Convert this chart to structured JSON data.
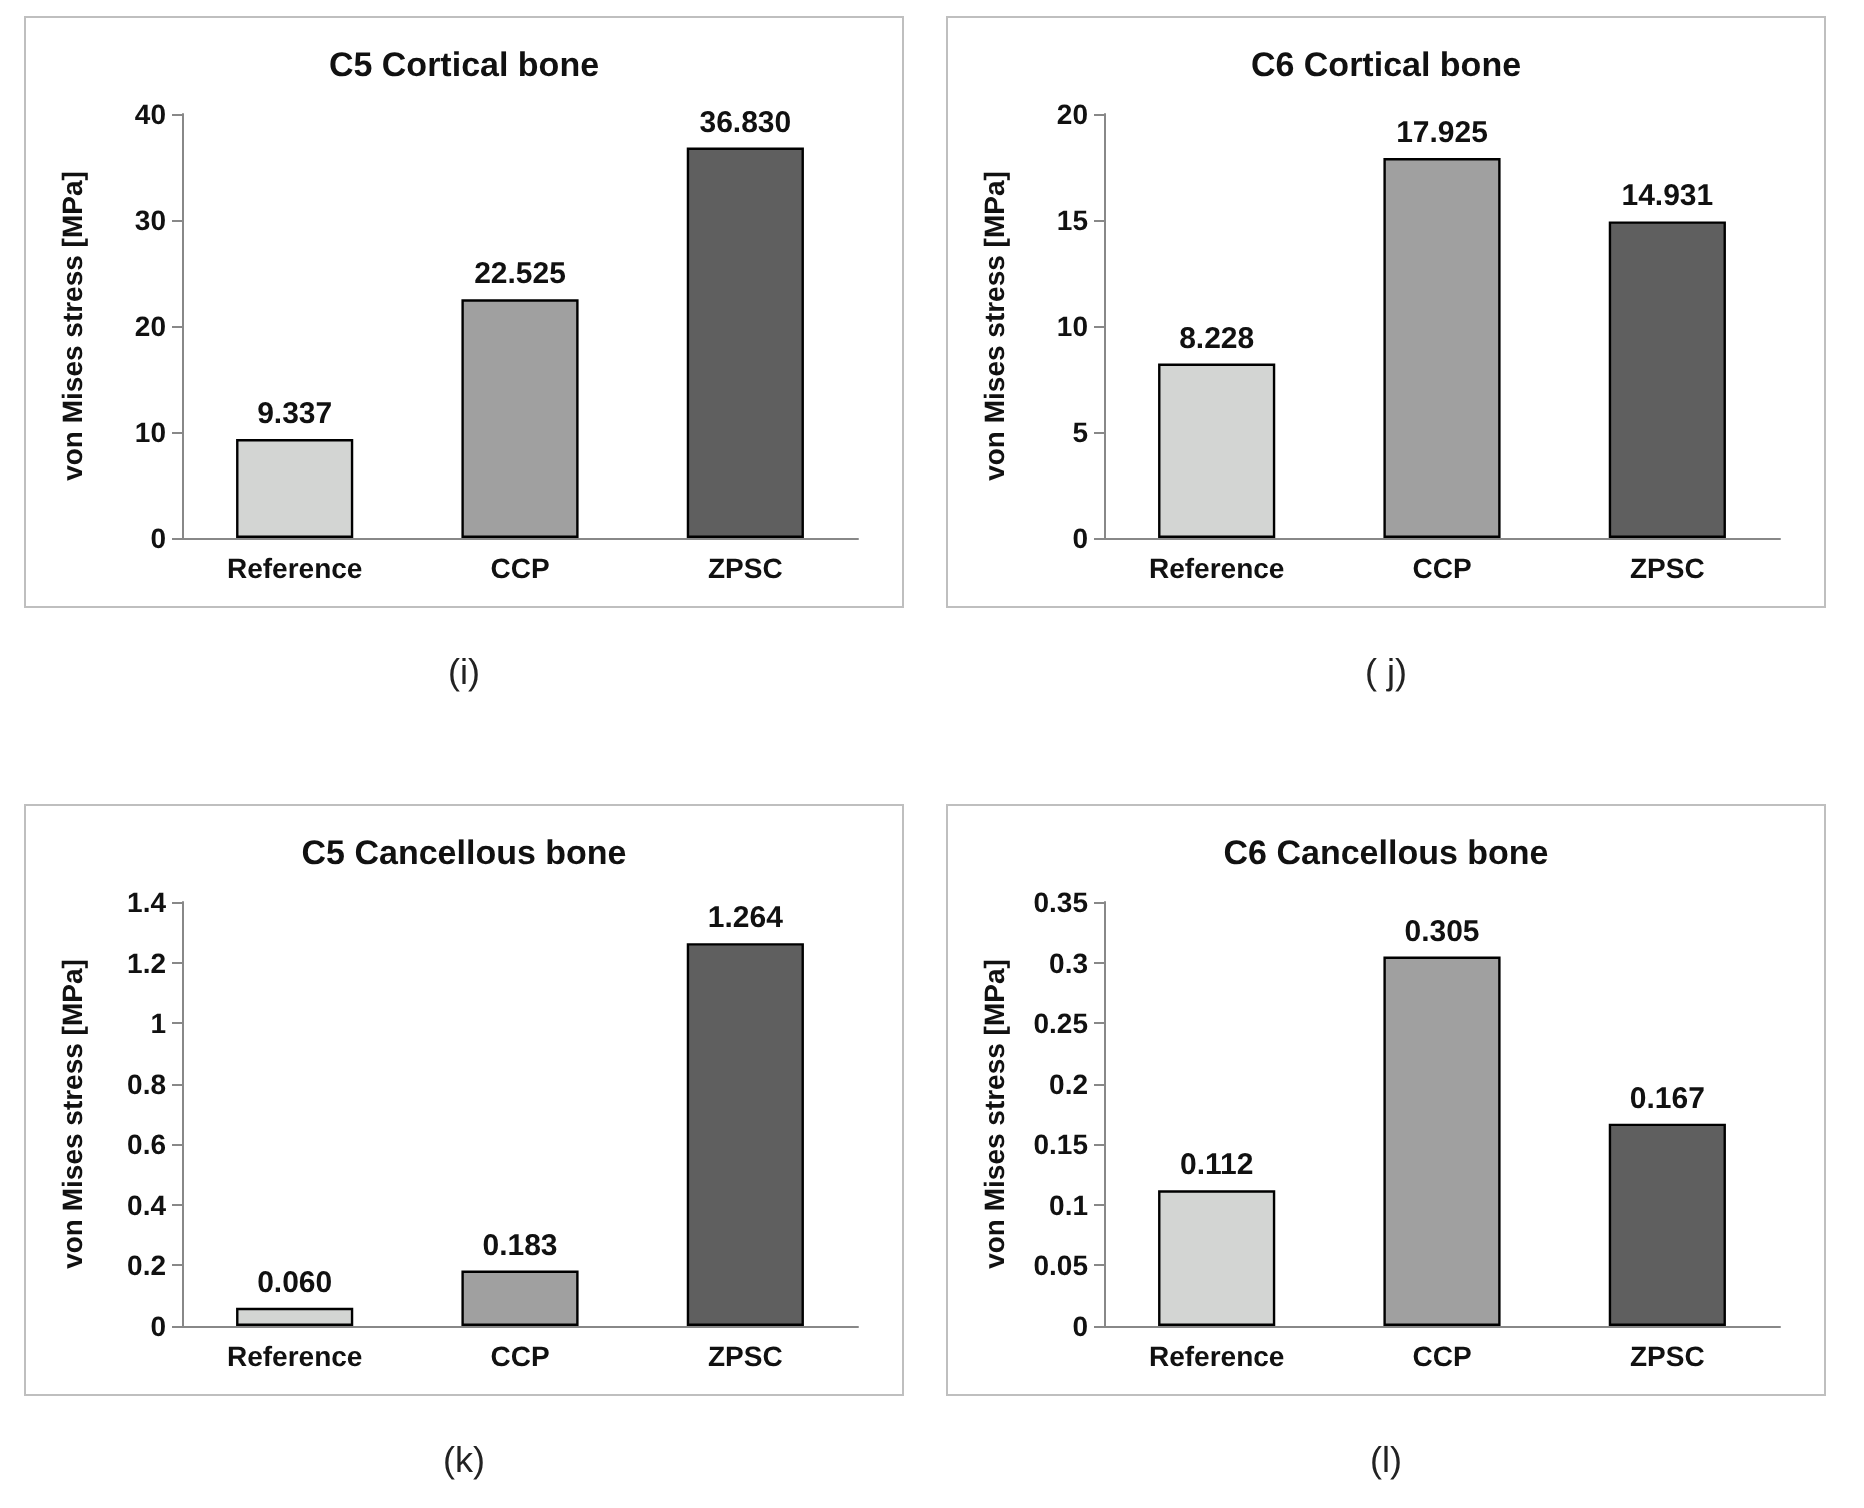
{
  "chart_data": [
    {
      "type": "bar",
      "title": "C5 Cortical bone",
      "ylabel": "von Mises stress [MPa]",
      "categories": [
        "Reference",
        "CCP",
        "ZPSC"
      ],
      "values": [
        9.337,
        22.525,
        36.83
      ],
      "value_labels": [
        "9.337",
        "22.525",
        "36.830"
      ],
      "colors": [
        "#d3d5d3",
        "#a0a0a0",
        "#5f5f5f"
      ],
      "ylim": [
        0,
        40
      ],
      "yticks": [
        0,
        10,
        20,
        30,
        40
      ],
      "annotations": [
        "(i)"
      ]
    },
    {
      "type": "bar",
      "title": "C6 Cortical bone",
      "ylabel": "von Mises stress [MPa]",
      "categories": [
        "Reference",
        "CCP",
        "ZPSC"
      ],
      "values": [
        8.228,
        17.925,
        14.931
      ],
      "value_labels": [
        "8.228",
        "17.925",
        "14.931"
      ],
      "colors": [
        "#d3d5d3",
        "#a0a0a0",
        "#5f5f5f"
      ],
      "ylim": [
        0,
        20
      ],
      "yticks": [
        0,
        5,
        10,
        15,
        20
      ],
      "annotations": [
        "( j)"
      ]
    },
    {
      "type": "bar",
      "title": "C5 Cancellous bone",
      "ylabel": "von Mises stress [MPa]",
      "categories": [
        "Reference",
        "CCP",
        "ZPSC"
      ],
      "values": [
        0.06,
        0.183,
        1.264
      ],
      "value_labels": [
        "0.060",
        "0.183",
        "1.264"
      ],
      "colors": [
        "#d3d5d3",
        "#a0a0a0",
        "#5f5f5f"
      ],
      "ylim": [
        0,
        1.4
      ],
      "yticks": [
        0,
        0.2,
        0.4,
        0.6,
        0.8,
        1,
        1.2,
        1.4
      ],
      "annotations": [
        "(k)"
      ]
    },
    {
      "type": "bar",
      "title": "C6 Cancellous bone",
      "ylabel": "von Mises stress [MPa]",
      "categories": [
        "Reference",
        "CCP",
        "ZPSC"
      ],
      "values": [
        0.112,
        0.305,
        0.167
      ],
      "value_labels": [
        "0.112",
        "0.305",
        "0.167"
      ],
      "colors": [
        "#d3d5d3",
        "#a0a0a0",
        "#5f5f5f"
      ],
      "ylim": [
        0,
        0.35
      ],
      "yticks": [
        0,
        0.05,
        0.1,
        0.15,
        0.2,
        0.25,
        0.3,
        0.35
      ],
      "annotations": [
        "(l)"
      ]
    }
  ]
}
